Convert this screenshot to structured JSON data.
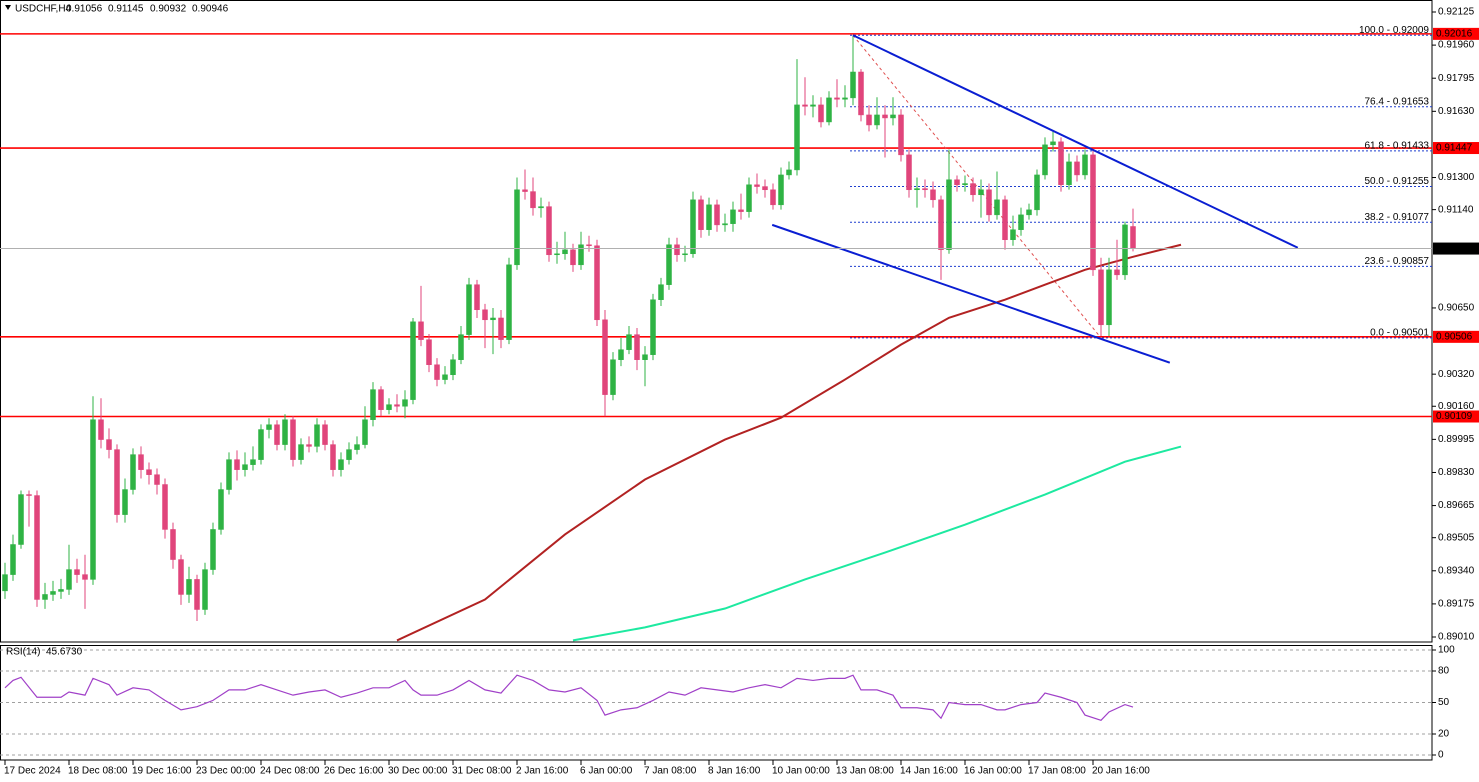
{
  "chart_data": [
    {
      "type": "candlestick",
      "symbol": "USDCHF,H4",
      "open": [
        0.8924,
        0.89321,
        0.89471,
        0.8972,
        0.89715,
        0.89197,
        0.89222,
        0.89237,
        0.89247,
        0.89346,
        0.89321,
        0.89297,
        0.90093,
        0.89994,
        0.89944,
        0.8962,
        0.89745,
        0.89919,
        0.89844,
        0.89819,
        0.8977,
        0.89546,
        0.89396,
        0.89222,
        0.89297,
        0.89147,
        0.89346,
        0.89546,
        0.89745,
        0.89894,
        0.89844,
        0.89869,
        0.89894,
        0.90044,
        0.90068,
        0.89969,
        0.90093,
        0.89894,
        0.89969,
        0.8996,
        0.90068,
        0.89969,
        0.89844,
        0.89894,
        0.89944,
        0.89969,
        0.90093,
        0.90243,
        0.90143,
        0.90168,
        0.9016,
        0.90193,
        0.90581,
        0.90492,
        0.90367,
        0.90293,
        0.90317,
        0.90392,
        0.90517,
        0.90766,
        0.90641,
        0.90591,
        0.906,
        0.90492,
        0.90865,
        0.91239,
        0.9123,
        0.91149,
        0.91155,
        0.90915,
        0.9092,
        0.9094,
        0.90865,
        0.90965,
        0.9096,
        0.90591,
        0.90218,
        0.90392,
        0.90442,
        0.90517,
        0.90392,
        0.90417,
        0.90691,
        0.90766,
        0.90965,
        0.90915,
        0.9092,
        0.91189,
        0.9104,
        0.91164,
        0.91064,
        0.9107,
        0.91139,
        0.9113,
        0.91264,
        0.91255,
        0.91239,
        0.91164,
        0.91313,
        0.91338,
        0.91662,
        0.91655,
        0.91662,
        0.91577,
        0.91697,
        0.9169,
        0.91697,
        0.91826,
        0.91612,
        0.91562,
        0.91612,
        0.91597,
        0.91612,
        0.91413,
        0.91239,
        0.91245,
        0.91239,
        0.91189,
        0.9094,
        0.91289,
        0.91264,
        0.9127,
        0.91214,
        0.91239,
        0.91114,
        0.91189,
        0.9099,
        0.9104,
        0.91114,
        0.91139,
        0.91313,
        0.91463,
        0.91478,
        0.91264,
        0.91378,
        0.91313,
        0.91413,
        0.9084,
        0.90566,
        0.9084,
        0.90815,
        0.91056
      ],
      "high": [
        0.8938,
        0.8952,
        0.8974,
        0.8974,
        0.8974,
        0.8928,
        0.8929,
        0.893,
        0.8947,
        0.894,
        0.8942,
        0.9021,
        0.902,
        0.9005,
        0.8997,
        0.898,
        0.8995,
        0.8996,
        0.8988,
        0.8985,
        0.898,
        0.8958,
        0.8942,
        0.8936,
        0.8932,
        0.8938,
        0.8958,
        0.8978,
        0.8993,
        0.8994,
        0.8993,
        0.8996,
        0.9007,
        0.901,
        0.9009,
        0.9012,
        0.9011,
        0.9,
        0.9001,
        0.901,
        0.9009,
        0.8999,
        0.8993,
        0.8998,
        0.9001,
        0.9016,
        0.9028,
        0.9026,
        0.902,
        0.9022,
        0.9024,
        0.906,
        0.9076,
        0.9052,
        0.904,
        0.9036,
        0.9042,
        0.9056,
        0.908,
        0.9079,
        0.9067,
        0.9065,
        0.9064,
        0.909,
        0.913,
        0.9134,
        0.913,
        0.912,
        0.9118,
        0.9098,
        0.9103,
        0.9097,
        0.9103,
        0.9101,
        0.9099,
        0.9064,
        0.9043,
        0.905,
        0.9056,
        0.9055,
        0.9046,
        0.9072,
        0.908,
        0.91,
        0.91,
        0.9096,
        0.9123,
        0.9121,
        0.912,
        0.9119,
        0.9112,
        0.9118,
        0.9122,
        0.913,
        0.9132,
        0.9129,
        0.9127,
        0.9135,
        0.9138,
        0.9189,
        0.918,
        0.9171,
        0.917,
        0.9173,
        0.9179,
        0.9176,
        0.92009,
        0.9184,
        0.9166,
        0.917,
        0.9166,
        0.917,
        0.9164,
        0.9144,
        0.913,
        0.9129,
        0.9128,
        0.9121,
        0.9144,
        0.9131,
        0.9131,
        0.913,
        0.9129,
        0.9127,
        0.9133,
        0.9121,
        0.9111,
        0.9115,
        0.9117,
        0.9134,
        0.915,
        0.9153,
        0.915,
        0.9142,
        0.9141,
        0.9144,
        0.9144,
        0.909,
        0.909,
        0.9099,
        0.9108,
        0.91145
      ],
      "low": [
        0.892,
        0.8929,
        0.8945,
        0.8956,
        0.8916,
        0.8915,
        0.8919,
        0.892,
        0.8922,
        0.8928,
        0.8915,
        0.8927,
        0.8995,
        0.899,
        0.8958,
        0.8958,
        0.8972,
        0.898,
        0.8977,
        0.8972,
        0.895,
        0.8935,
        0.8917,
        0.8918,
        0.8909,
        0.8912,
        0.8932,
        0.8952,
        0.8972,
        0.8979,
        0.8981,
        0.8984,
        0.8987,
        0.9,
        0.8994,
        0.8994,
        0.8986,
        0.8987,
        0.8993,
        0.8993,
        0.8994,
        0.8981,
        0.8981,
        0.8987,
        0.8992,
        0.8995,
        0.9006,
        0.9011,
        0.9012,
        0.9013,
        0.901,
        0.9017,
        0.9046,
        0.9033,
        0.9026,
        0.9027,
        0.9029,
        0.9037,
        0.9049,
        0.906,
        0.9045,
        0.9042,
        0.9045,
        0.9047,
        0.9084,
        0.9119,
        0.9111,
        0.911,
        0.9088,
        0.9087,
        0.9089,
        0.9083,
        0.9084,
        0.9093,
        0.9056,
        0.9011,
        0.9019,
        0.9036,
        0.9042,
        0.9034,
        0.9026,
        0.9039,
        0.9066,
        0.9074,
        0.9088,
        0.9088,
        0.909,
        0.91,
        0.9101,
        0.9103,
        0.9103,
        0.9103,
        0.9109,
        0.911,
        0.9122,
        0.912,
        0.9114,
        0.9114,
        0.9129,
        0.9131,
        0.9161,
        0.916,
        0.9155,
        0.9156,
        0.9165,
        0.9165,
        0.9166,
        0.9158,
        0.9153,
        0.9154,
        0.914,
        0.9156,
        0.9138,
        0.912,
        0.9115,
        0.912,
        0.9115,
        0.9079,
        0.9092,
        0.9123,
        0.9123,
        0.9118,
        0.911,
        0.9108,
        0.9109,
        0.9094,
        0.9096,
        0.9101,
        0.9109,
        0.9111,
        0.9129,
        0.9143,
        0.9123,
        0.9124,
        0.9128,
        0.9129,
        0.9081,
        0.9051,
        0.9051,
        0.9079,
        0.9079,
        0.90932
      ],
      "close": [
        0.89321,
        0.89471,
        0.8972,
        0.89715,
        0.89197,
        0.89222,
        0.89237,
        0.89247,
        0.89346,
        0.89321,
        0.89297,
        0.90093,
        0.89994,
        0.89944,
        0.8962,
        0.89745,
        0.89919,
        0.89844,
        0.89819,
        0.8977,
        0.89546,
        0.89396,
        0.89222,
        0.89297,
        0.89147,
        0.89346,
        0.89546,
        0.89745,
        0.89894,
        0.89844,
        0.89869,
        0.89894,
        0.90044,
        0.90068,
        0.89969,
        0.90093,
        0.89894,
        0.89969,
        0.8996,
        0.90068,
        0.89969,
        0.89844,
        0.89894,
        0.89944,
        0.89969,
        0.90093,
        0.90243,
        0.90143,
        0.90168,
        0.9016,
        0.90193,
        0.90581,
        0.90492,
        0.90367,
        0.90293,
        0.90317,
        0.90392,
        0.90517,
        0.90766,
        0.90641,
        0.90591,
        0.906,
        0.90492,
        0.90865,
        0.91239,
        0.9123,
        0.91149,
        0.91155,
        0.90915,
        0.9092,
        0.9094,
        0.90865,
        0.90965,
        0.9096,
        0.90591,
        0.90218,
        0.90392,
        0.90442,
        0.90517,
        0.90392,
        0.90417,
        0.90691,
        0.90766,
        0.90965,
        0.90915,
        0.9092,
        0.91189,
        0.9104,
        0.91164,
        0.91064,
        0.9107,
        0.91139,
        0.9113,
        0.91264,
        0.91255,
        0.91239,
        0.91164,
        0.91313,
        0.91338,
        0.91662,
        0.91655,
        0.91662,
        0.91577,
        0.91697,
        0.9169,
        0.91697,
        0.91826,
        0.91612,
        0.91562,
        0.91612,
        0.91597,
        0.91612,
        0.91413,
        0.91239,
        0.91245,
        0.91239,
        0.91189,
        0.9094,
        0.91289,
        0.91264,
        0.9127,
        0.91214,
        0.91239,
        0.91114,
        0.91189,
        0.9099,
        0.9104,
        0.91114,
        0.91139,
        0.91313,
        0.91463,
        0.91478,
        0.91264,
        0.91378,
        0.91313,
        0.91413,
        0.9084,
        0.90566,
        0.9084,
        0.90815,
        0.91064,
        0.90946
      ],
      "up_color": "#2fb344",
      "down_color": "#e0457b",
      "ylim": [
        0.8901,
        0.92125
      ],
      "yticks": [
        0.92125,
        {
          "value": 0.9196,
          "label": "0.91960"
        },
        0.91795,
        {
          "value": 0.9163,
          "label": "0.91630"
        },
        {
          "value": 0.913,
          "label": "0.91300"
        },
        {
          "value": 0.9114,
          "label": "0.91140"
        },
        {
          "value": 0.9065,
          "label": "0.90650"
        },
        {
          "value": 0.9032,
          "label": "0.90320"
        },
        {
          "value": 0.9016,
          "label": "0.90160"
        },
        0.89995,
        {
          "value": 0.8983,
          "label": "0.89830"
        },
        0.89665,
        0.89505,
        {
          "value": 0.8934,
          "label": "0.89340"
        },
        0.89175,
        {
          "value": 0.8901,
          "label": "0.89010"
        }
      ],
      "xticks": [
        {
          "value": 0,
          "label": "17 Dec 2024"
        },
        {
          "value": 8,
          "label": "18 Dec 08:00"
        },
        {
          "value": 16,
          "label": "19 Dec 16:00"
        },
        {
          "value": 24,
          "label": "23 Dec 00:00"
        },
        {
          "value": 32,
          "label": "24 Dec 08:00"
        },
        {
          "value": 40,
          "label": "26 Dec 16:00"
        },
        {
          "value": 48,
          "label": "30 Dec 00:00"
        },
        {
          "value": 56,
          "label": "31 Dec 08:00"
        },
        {
          "value": 64,
          "label": "2 Jan 16:00"
        },
        {
          "value": 72,
          "label": "6 Jan 00:00"
        },
        {
          "value": 80,
          "label": "7 Jan 08:00"
        },
        {
          "value": 88,
          "label": "8 Jan 16:00"
        },
        {
          "value": 96,
          "label": "10 Jan 00:00"
        },
        {
          "value": 104,
          "label": "13 Jan 08:00"
        },
        {
          "value": 112,
          "label": "14 Jan 16:00"
        },
        {
          "value": 120,
          "label": "16 Jan 00:00"
        },
        {
          "value": 128,
          "label": "17 Jan 08:00"
        },
        {
          "value": 136,
          "label": "20 Jan 16:00"
        }
      ],
      "moving_averages": [
        {
          "color": "#b22222",
          "x": [
            49,
            60,
            70,
            80,
            90,
            97,
            105,
            112,
            118,
            125,
            130,
            135,
            141,
            147
          ],
          "values": [
            0.88993,
            0.89197,
            0.89521,
            0.89795,
            0.89994,
            0.90103,
            0.90293,
            0.90467,
            0.90601,
            0.90691,
            0.90766,
            0.9084,
            0.90905,
            0.90965
          ]
        },
        {
          "color": "#1de9a0",
          "x": [
            71,
            80,
            90,
            100,
            110,
            120,
            130,
            140,
            147
          ],
          "values": [
            0.88993,
            0.89058,
            0.89152,
            0.89297,
            0.89431,
            0.8957,
            0.8972,
            0.89884,
            0.89959
          ]
        }
      ],
      "hlines": [
        {
          "value": 0.92016,
          "color": "#ff0000"
        },
        {
          "value": 0.91447,
          "color": "#ff0000"
        },
        {
          "value": 0.90506,
          "color": "#ff0000"
        },
        {
          "value": 0.90109,
          "color": "#ff0000"
        }
      ],
      "fib": {
        "color": "#1f3fcf",
        "line_color": "#e05050",
        "x": [
          106,
          137
        ],
        "levels": [
          {
            "value": 0.92009,
            "label": "100.0 - 0.92009"
          },
          {
            "value": 0.91653,
            "label": "76.4 - 0.91653"
          },
          {
            "value": 0.91433,
            "label": "61.8 - 0.91433"
          },
          {
            "value": 0.91255,
            "label": "50.0 - 0.91255"
          },
          {
            "value": 0.91077,
            "label": "38.2 - 0.91077"
          },
          {
            "value": 0.90857,
            "label": "23.6 - 0.90857"
          },
          {
            "value": 0.90501,
            "label": "0.0 - 0.90501"
          }
        ]
      },
      "trendlines": [
        {
          "color": "#0a1ed2",
          "x": [
            106,
            161.6
          ],
          "values": [
            0.92009,
            0.9095
          ]
        },
        {
          "color": "#0a1ed2",
          "x": [
            95.9,
            145.6
          ],
          "values": [
            0.91064,
            0.90377
          ]
        }
      ]
    },
    {
      "type": "line",
      "title": "RSI(14)",
      "current": {
        "value": 45.673,
        "label": "45.6730"
      },
      "color": "#a040c8",
      "x": [
        0,
        1,
        2,
        4,
        7,
        8,
        10,
        11,
        13,
        14,
        16,
        18,
        20,
        22,
        24,
        26,
        28,
        30,
        32,
        34,
        36,
        38,
        40,
        42,
        44,
        46,
        48,
        50,
        51,
        52,
        54,
        56,
        58,
        60,
        62,
        64,
        66,
        68,
        70,
        72,
        74,
        75,
        77,
        79,
        81,
        83,
        85,
        87,
        89,
        91,
        93,
        95,
        97,
        99,
        101,
        103,
        105,
        106,
        107,
        109,
        111,
        112,
        114,
        116,
        117,
        118,
        120,
        122,
        124,
        125,
        127,
        129,
        130,
        132,
        134,
        135,
        137,
        138,
        140,
        141
      ],
      "values": [
        64,
        71,
        74,
        55,
        55,
        60,
        57,
        73,
        67,
        57,
        64,
        62,
        52,
        43,
        46,
        52,
        62,
        62,
        67,
        62,
        57,
        60,
        62,
        55,
        59,
        64,
        64,
        71,
        62,
        57,
        57,
        62,
        71,
        62,
        59,
        76,
        71,
        62,
        60,
        64,
        52,
        38,
        43,
        45,
        52,
        60,
        57,
        64,
        62,
        60,
        64,
        67,
        64,
        73,
        71,
        73,
        73,
        76,
        62,
        62,
        57,
        45,
        45,
        43,
        35,
        50,
        48,
        48,
        43,
        43,
        48,
        50,
        59,
        55,
        50,
        38,
        33,
        41,
        48,
        45.673
      ],
      "ylim": [
        0,
        100
      ],
      "yticks": [
        0,
        20,
        50,
        80,
        100
      ],
      "grid": true
    }
  ]
}
